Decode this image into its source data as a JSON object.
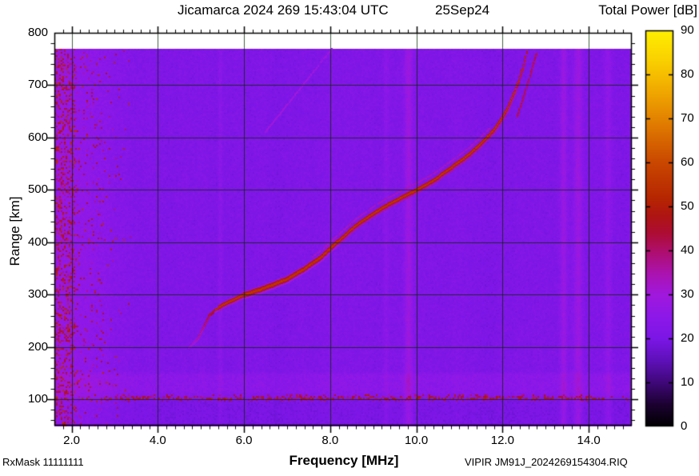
{
  "header": {
    "title": "Jicamarca 2024 269 15:43:04 UTC",
    "date": "25Sep24",
    "colorbar_title": "Total Power [dB]"
  },
  "footer": {
    "rx_mask": "RxMask 11111111",
    "x_axis_label": "Frequency [MHz]",
    "file_id": "VIPIR  JM91J_2024269154304.RIQ"
  },
  "y_axis_label": "Range [km]",
  "chart_data": {
    "type": "heatmap",
    "title": "Jicamarca 2024 269 15:43:04 UTC",
    "subtitle": "25Sep24",
    "xlabel": "Frequency [MHz]",
    "ylabel": "Range [km]",
    "xlim": [
      1.6,
      15.0
    ],
    "ylim": [
      50,
      800
    ],
    "grid": true,
    "x_ticks": [
      {
        "value": 2,
        "label": "2.0"
      },
      {
        "value": 4,
        "label": "4.0"
      },
      {
        "value": 6,
        "label": "6.0"
      },
      {
        "value": 8,
        "label": "8.0"
      },
      {
        "value": 10,
        "label": "10.0"
      },
      {
        "value": 12,
        "label": "12.0"
      },
      {
        "value": 14,
        "label": "14.0"
      }
    ],
    "y_ticks": [
      {
        "value": 100,
        "label": "100"
      },
      {
        "value": 200,
        "label": "200"
      },
      {
        "value": 300,
        "label": "300"
      },
      {
        "value": 400,
        "label": "400"
      },
      {
        "value": 500,
        "label": "500"
      },
      {
        "value": 600,
        "label": "600"
      },
      {
        "value": 700,
        "label": "700"
      },
      {
        "value": 800,
        "label": "800"
      }
    ],
    "x_minor_step": 0.2,
    "y_minor_step": 20,
    "colorbar": {
      "title": "Total Power [dB]",
      "min": 0,
      "max": 90,
      "ticks": [
        {
          "value": 0,
          "label": "0"
        },
        {
          "value": 10,
          "label": "10"
        },
        {
          "value": 20,
          "label": "20"
        },
        {
          "value": 30,
          "label": "30"
        },
        {
          "value": 40,
          "label": "40"
        },
        {
          "value": 50,
          "label": "50"
        },
        {
          "value": 60,
          "label": "60"
        },
        {
          "value": 70,
          "label": "70"
        },
        {
          "value": 80,
          "label": "80"
        },
        {
          "value": 90,
          "label": "90"
        }
      ],
      "palette_stops": [
        [
          0,
          "#000000"
        ],
        [
          5,
          "#1c0130"
        ],
        [
          10,
          "#3f0878"
        ],
        [
          15,
          "#5e10b8"
        ],
        [
          20,
          "#7b16e6"
        ],
        [
          25,
          "#8d18e8"
        ],
        [
          30,
          "#a018dd"
        ],
        [
          35,
          "#ab13ad"
        ],
        [
          40,
          "#ae0e6b"
        ],
        [
          44,
          "#ad0d33"
        ],
        [
          48,
          "#ae1512"
        ],
        [
          52,
          "#b62601"
        ],
        [
          60,
          "#c94700"
        ],
        [
          68,
          "#de7700"
        ],
        [
          76,
          "#f0a700"
        ],
        [
          83,
          "#f9cf00"
        ],
        [
          90,
          "#ffef00"
        ]
      ]
    },
    "background_noise_db": {
      "base": 21.6,
      "sigma": 1.5
    },
    "data_extent": {
      "freq_mhz": [
        1.6,
        15.0
      ],
      "range_km": [
        50,
        770
      ]
    },
    "features": {
      "f_region_trace": {
        "description": "F-layer O-mode echo trace",
        "power_db": 56,
        "points_mhz_km": [
          [
            4.72,
            200
          ],
          [
            4.9,
            214
          ],
          [
            5.0,
            228
          ],
          [
            5.1,
            245
          ],
          [
            5.2,
            262
          ],
          [
            5.35,
            272
          ],
          [
            5.5,
            280
          ],
          [
            5.75,
            290
          ],
          [
            6.0,
            300
          ],
          [
            6.3,
            308
          ],
          [
            6.6,
            317
          ],
          [
            7.0,
            330
          ],
          [
            7.4,
            349
          ],
          [
            7.8,
            372
          ],
          [
            8.0,
            388
          ],
          [
            8.3,
            410
          ],
          [
            8.6,
            432
          ],
          [
            9.0,
            455
          ],
          [
            9.3,
            470
          ],
          [
            9.6,
            483
          ],
          [
            10.0,
            500
          ],
          [
            10.4,
            518
          ],
          [
            10.8,
            542
          ],
          [
            11.2,
            566
          ],
          [
            11.5,
            588
          ],
          [
            11.8,
            614
          ],
          [
            12.0,
            638
          ],
          [
            12.15,
            660
          ],
          [
            12.3,
            690
          ],
          [
            12.4,
            714
          ],
          [
            12.5,
            740
          ],
          [
            12.57,
            765
          ]
        ]
      },
      "x_mode_branch": {
        "description": "faint X-mode branch near trace top",
        "power_db": 46,
        "points_mhz_km": [
          [
            12.32,
            638
          ],
          [
            12.45,
            668
          ],
          [
            12.57,
            700
          ],
          [
            12.68,
            730
          ],
          [
            12.79,
            762
          ]
        ]
      },
      "second_echo": {
        "description": "faint parallel echo just above main trace",
        "power_db": 33,
        "range_offset_km": 14,
        "freq_span_mhz": [
          7.6,
          11.7
        ]
      },
      "e_region_echo": {
        "description": "speckled red horizontal echo line",
        "range_km": [
          96,
          110
        ],
        "center_km": 103,
        "power_db_range": [
          36,
          52
        ]
      },
      "enhanced_band": {
        "range_km": [
          106,
          154
        ],
        "boost_db": 3.0
      },
      "low_band_dim": {
        "range_km": [
          50,
          96
        ],
        "boost_db": -1.3
      },
      "hf_interference": {
        "description": "broadband interference at low frequencies",
        "freq_below_mhz": 3.4,
        "gain_db_per_mhz": 4.0,
        "speckle_db": [
          34,
          54
        ]
      },
      "oblique_streak": {
        "description": "faint oblique echo streak",
        "from_mhz_km": [
          6.5,
          612
        ],
        "to_mhz_km": [
          8.05,
          772
        ],
        "power_db": 29.5
      },
      "rfi_stripes": [
        {
          "freq_mhz": 9.82,
          "width_mhz": 0.09,
          "boost_db": 7
        },
        {
          "freq_mhz": 9.3,
          "width_mhz": 0.06,
          "boost_db": 3
        },
        {
          "freq_mhz": 13.42,
          "width_mhz": 0.07,
          "boost_db": 6
        },
        {
          "freq_mhz": 13.76,
          "width_mhz": 0.1,
          "boost_db": 7
        },
        {
          "freq_mhz": 14.45,
          "width_mhz": 0.08,
          "boost_db": 4
        },
        {
          "freq_mhz": 5.45,
          "width_mhz": 0.05,
          "boost_db": 3
        }
      ]
    }
  }
}
